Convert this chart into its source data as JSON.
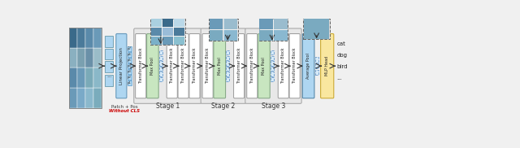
{
  "bg_color": "#f0f0f0",
  "transformer_color": "#ffffff",
  "maxpool_color": "#c8e6c0",
  "avgpool_color": "#aed6f1",
  "mlphead_color": "#f9e79f",
  "linproj_color": "#aed6f1",
  "token_solid_color": "#aed6f1",
  "token_solid_ec": "#5599cc",
  "token_dashed_color": "#d6eaf8",
  "token_dashed_ec": "#5599cc",
  "stage_bg_color": "#e8e8e8",
  "stage_ec": "#aaaaaa",
  "patch_strip_color": "#aed6f1",
  "patch_strip_ec": "#6699aa",
  "output_labels": [
    "cat",
    "dog",
    "bird",
    "..."
  ],
  "stage_labels": [
    "Stage 1",
    "Stage 2",
    "Stage 3"
  ],
  "patch_pos_text": "Patch + Pos",
  "without_cls_text": "Without CLS",
  "img_grid_colors": [
    "#7ab0c8",
    "#6a9ab8",
    "#8ac0d0",
    "#5a8aaa",
    "#9abcd8",
    "#4a7a9a",
    "#aad0e0",
    "#3a6a8a",
    "#bad8e8"
  ],
  "img_boat_colors_3x3": [
    "#6a9ab8",
    "#8ab8d0",
    "#7aaac0",
    "#5a8aaa",
    "#9abcce",
    "#8aacbe",
    "#4a7a9a",
    "#7a9ab0",
    "#6a8aa0"
  ],
  "img_boat_colors_2x2": [
    "#7aaac0",
    "#8ab8d0",
    "#6a9ab8",
    "#9abcce"
  ],
  "img_boat_colors_1x1": [
    "#7aaac0"
  ],
  "arrow_color": "#333333",
  "text_color": "#222222",
  "red_text_color": "#cc0000"
}
